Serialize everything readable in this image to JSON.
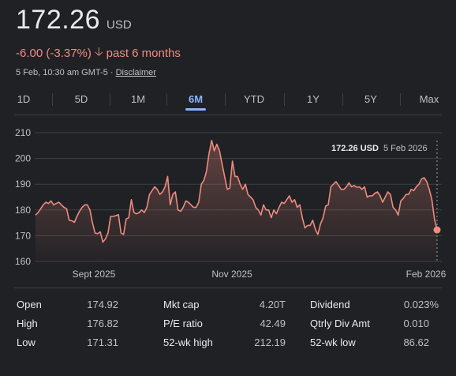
{
  "quote": {
    "price": "172.26",
    "currency": "USD",
    "change": "-6.00 (-3.37%)",
    "period": "past 6 months",
    "timestamp": "5 Feb, 10:30 am GMT-5",
    "separator": "·",
    "disclaimer": "Disclaimer"
  },
  "tabs": [
    {
      "label": "1D"
    },
    {
      "label": "5D"
    },
    {
      "label": "1M"
    },
    {
      "label": "6M",
      "active": true
    },
    {
      "label": "YTD"
    },
    {
      "label": "1Y"
    },
    {
      "label": "5Y"
    },
    {
      "label": "Max"
    }
  ],
  "chart_data": {
    "type": "area",
    "y_ticks": [
      210,
      200,
      190,
      180,
      170,
      160
    ],
    "ylim": [
      160,
      210
    ],
    "x_ticks": [
      "Sept 2025",
      "Nov 2025",
      "Feb 2026"
    ],
    "values": [
      178,
      179,
      180.5,
      182,
      183,
      182.5,
      183.5,
      182,
      182.5,
      183,
      182,
      181,
      180.5,
      176,
      175.8,
      175.2,
      177.5,
      179.5,
      181,
      182,
      182,
      180,
      175,
      171,
      170.8,
      171.5,
      167.5,
      168.8,
      171,
      177.5,
      177.5,
      177.8,
      178.2,
      171,
      170.5,
      176.5,
      177,
      184,
      179,
      178.5,
      179,
      180,
      179,
      181,
      186,
      187.5,
      189,
      188,
      186,
      187,
      189,
      193,
      182,
      186,
      187,
      180,
      179.5,
      181,
      183.5,
      183,
      182,
      181,
      181,
      183,
      190,
      191.5,
      195,
      202,
      207,
      203,
      205.5,
      203,
      198,
      193,
      188,
      188.5,
      199,
      193,
      193,
      190,
      188,
      190,
      186,
      185,
      184,
      181,
      180,
      178,
      182,
      180,
      180,
      177,
      180,
      178.5,
      181,
      183,
      182.5,
      184,
      185.5,
      183,
      184,
      181,
      182,
      177,
      173,
      174,
      174,
      176,
      172.5,
      170.5,
      174.5,
      177,
      181.5,
      182,
      189,
      190,
      191,
      189.5,
      188,
      188,
      189,
      190.5,
      189,
      189.5,
      188.8,
      189,
      188,
      189,
      185,
      185.5,
      185.5,
      186.5,
      187,
      185.5,
      183,
      185,
      187,
      186,
      181,
      180,
      178,
      183.5,
      184.5,
      186,
      186,
      188,
      187.5,
      189,
      190,
      192,
      192.5,
      191,
      188,
      184,
      176.5,
      172.26
    ],
    "tooltip": {
      "value": "172.26 USD",
      "date": "5 Feb 2026"
    }
  },
  "stats": [
    {
      "label": "Open",
      "value": "174.92"
    },
    {
      "label": "High",
      "value": "176.82"
    },
    {
      "label": "Low",
      "value": "171.31"
    },
    {
      "label": "Mkt cap",
      "value": "4.20T"
    },
    {
      "label": "P/E ratio",
      "value": "42.49"
    },
    {
      "label": "52-wk high",
      "value": "212.19"
    },
    {
      "label": "Dividend",
      "value": "0.023%"
    },
    {
      "label": "Qtrly Div Amt",
      "value": "0.010"
    },
    {
      "label": "52-wk low",
      "value": "86.62"
    }
  ],
  "colors": {
    "negative": "#f28b82",
    "accent": "#8ab4f8",
    "line": "#ee8b7f",
    "background": "#202124"
  }
}
